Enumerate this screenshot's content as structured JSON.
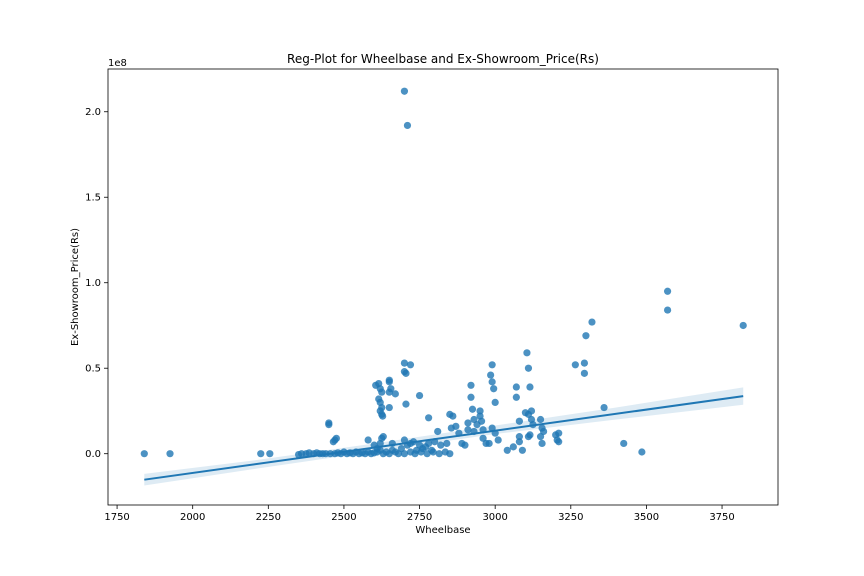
{
  "chart_data": {
    "type": "scatter",
    "title": "Reg-Plot for Wheelbase and Ex-Showroom_Price(Rs)",
    "xlabel": "Wheelbase",
    "ylabel": "Ex-Showroom_Price(Rs)",
    "y_scale_label": "1e8",
    "xlim": [
      1720,
      3935
    ],
    "ylim": [
      -0.3,
      2.25
    ],
    "x_ticks": [
      1750,
      2000,
      2250,
      2500,
      2750,
      3000,
      3250,
      3500,
      3750
    ],
    "x_tick_labels": [
      "1750",
      "2000",
      "2250",
      "2500",
      "2750",
      "3000",
      "3250",
      "3500",
      "3750"
    ],
    "y_ticks": [
      0.0,
      0.5,
      1.0,
      1.5,
      2.0
    ],
    "y_tick_labels": [
      "0.0",
      "0.5",
      "1.0",
      "1.5",
      "2.0"
    ],
    "grid": false,
    "point_color": "#1f77b4",
    "line_color": "#1f77b4",
    "band_color": "#1f77b4",
    "regression_line": [
      [
        1840,
        -0.152
      ],
      [
        3820,
        0.337
      ]
    ],
    "confidence_band": {
      "x": [
        1840,
        2200,
        2600,
        3000,
        3400,
        3820
      ],
      "upper": [
        -0.118,
        -0.04,
        0.06,
        0.165,
        0.27,
        0.388
      ],
      "lower": [
        -0.186,
        -0.09,
        0.013,
        0.115,
        0.2,
        0.286
      ]
    },
    "points": [
      [
        1840,
        0.0
      ],
      [
        1925,
        0.0
      ],
      [
        2225,
        0.0
      ],
      [
        2255,
        0.0
      ],
      [
        2350,
        -0.005
      ],
      [
        2360,
        0.0
      ],
      [
        2375,
        0.0
      ],
      [
        2385,
        0.005
      ],
      [
        2400,
        0.0
      ],
      [
        2410,
        0.005
      ],
      [
        2420,
        0.0
      ],
      [
        2430,
        0.0
      ],
      [
        2440,
        0.0
      ],
      [
        2450,
        0.18
      ],
      [
        2450,
        0.17
      ],
      [
        2465,
        0.07
      ],
      [
        2470,
        0.08
      ],
      [
        2475,
        0.09
      ],
      [
        2455,
        0.0
      ],
      [
        2470,
        0.0
      ],
      [
        2480,
        0.005
      ],
      [
        2490,
        0.0
      ],
      [
        2500,
        0.01
      ],
      [
        2510,
        0.0
      ],
      [
        2520,
        0.005
      ],
      [
        2530,
        0.0
      ],
      [
        2540,
        0.01
      ],
      [
        2550,
        0.0
      ],
      [
        2560,
        0.005
      ],
      [
        2570,
        0.0
      ],
      [
        2580,
        0.01
      ],
      [
        2590,
        0.0
      ],
      [
        2600,
        0.005
      ],
      [
        2580,
        0.08
      ],
      [
        2600,
        0.05
      ],
      [
        2610,
        0.03
      ],
      [
        2620,
        0.06
      ],
      [
        2630,
        0.1
      ],
      [
        2625,
        0.09
      ],
      [
        2605,
        0.4
      ],
      [
        2615,
        0.41
      ],
      [
        2620,
        0.38
      ],
      [
        2625,
        0.36
      ],
      [
        2615,
        0.32
      ],
      [
        2620,
        0.3
      ],
      [
        2625,
        0.27
      ],
      [
        2620,
        0.25
      ],
      [
        2625,
        0.23
      ],
      [
        2628,
        0.22
      ],
      [
        2650,
        0.43
      ],
      [
        2650,
        0.42
      ],
      [
        2655,
        0.38
      ],
      [
        2650,
        0.36
      ],
      [
        2670,
        0.35
      ],
      [
        2650,
        0.27
      ],
      [
        2660,
        0.06
      ],
      [
        2610,
        0.01
      ],
      [
        2620,
        0.02
      ],
      [
        2630,
        0.0
      ],
      [
        2640,
        0.01
      ],
      [
        2650,
        0.0
      ],
      [
        2660,
        0.02
      ],
      [
        2670,
        0.01
      ],
      [
        2680,
        0.0
      ],
      [
        2690,
        0.03
      ],
      [
        2700,
        0.0
      ],
      [
        2700,
        0.53
      ],
      [
        2700,
        0.48
      ],
      [
        2705,
        0.47
      ],
      [
        2720,
        0.52
      ],
      [
        2705,
        0.29
      ],
      [
        2700,
        2.12
      ],
      [
        2710,
        1.92
      ],
      [
        2700,
        0.08
      ],
      [
        2710,
        0.05
      ],
      [
        2720,
        0.06
      ],
      [
        2730,
        0.07
      ],
      [
        2740,
        0.02
      ],
      [
        2750,
        0.05
      ],
      [
        2760,
        0.03
      ],
      [
        2770,
        0.04
      ],
      [
        2780,
        0.06
      ],
      [
        2790,
        0.02
      ],
      [
        2800,
        0.07
      ],
      [
        2750,
        0.34
      ],
      [
        2780,
        0.21
      ],
      [
        2810,
        0.13
      ],
      [
        2720,
        0.01
      ],
      [
        2735,
        0.0
      ],
      [
        2755,
        0.01
      ],
      [
        2775,
        0.0
      ],
      [
        2795,
        0.01
      ],
      [
        2815,
        0.0
      ],
      [
        2835,
        0.01
      ],
      [
        2850,
        0.0
      ],
      [
        2820,
        0.05
      ],
      [
        2840,
        0.06
      ],
      [
        2850,
        0.23
      ],
      [
        2860,
        0.22
      ],
      [
        2855,
        0.15
      ],
      [
        2870,
        0.16
      ],
      [
        2880,
        0.12
      ],
      [
        2890,
        0.06
      ],
      [
        2900,
        0.05
      ],
      [
        2910,
        0.14
      ],
      [
        2910,
        0.18
      ],
      [
        2920,
        0.4
      ],
      [
        2920,
        0.33
      ],
      [
        2925,
        0.26
      ],
      [
        2930,
        0.2
      ],
      [
        2930,
        0.13
      ],
      [
        2940,
        0.17
      ],
      [
        2950,
        0.25
      ],
      [
        2950,
        0.22
      ],
      [
        2955,
        0.19
      ],
      [
        2960,
        0.14
      ],
      [
        2960,
        0.09
      ],
      [
        2970,
        0.06
      ],
      [
        2990,
        0.52
      ],
      [
        2985,
        0.46
      ],
      [
        2990,
        0.42
      ],
      [
        2995,
        0.38
      ],
      [
        3000,
        0.3
      ],
      [
        2990,
        0.15
      ],
      [
        3000,
        0.12
      ],
      [
        3010,
        0.08
      ],
      [
        2980,
        0.06
      ],
      [
        3040,
        0.02
      ],
      [
        3060,
        0.04
      ],
      [
        3070,
        0.39
      ],
      [
        3070,
        0.33
      ],
      [
        3080,
        0.19
      ],
      [
        3080,
        0.07
      ],
      [
        3080,
        0.1
      ],
      [
        3090,
        0.02
      ],
      [
        3105,
        0.59
      ],
      [
        3110,
        0.5
      ],
      [
        3115,
        0.39
      ],
      [
        3100,
        0.24
      ],
      [
        3110,
        0.23
      ],
      [
        3120,
        0.25
      ],
      [
        3120,
        0.2
      ],
      [
        3125,
        0.17
      ],
      [
        3115,
        0.11
      ],
      [
        3110,
        0.1
      ],
      [
        3150,
        0.2
      ],
      [
        3155,
        0.15
      ],
      [
        3160,
        0.13
      ],
      [
        3150,
        0.1
      ],
      [
        3155,
        0.06
      ],
      [
        3200,
        0.11
      ],
      [
        3210,
        0.12
      ],
      [
        3205,
        0.08
      ],
      [
        3210,
        0.07
      ],
      [
        3265,
        0.52
      ],
      [
        3295,
        0.53
      ],
      [
        3295,
        0.47
      ],
      [
        3300,
        0.69
      ],
      [
        3320,
        0.77
      ],
      [
        3360,
        0.27
      ],
      [
        3425,
        0.06
      ],
      [
        3485,
        0.01
      ],
      [
        3570,
        0.95
      ],
      [
        3570,
        0.84
      ],
      [
        3820,
        0.75
      ]
    ]
  }
}
